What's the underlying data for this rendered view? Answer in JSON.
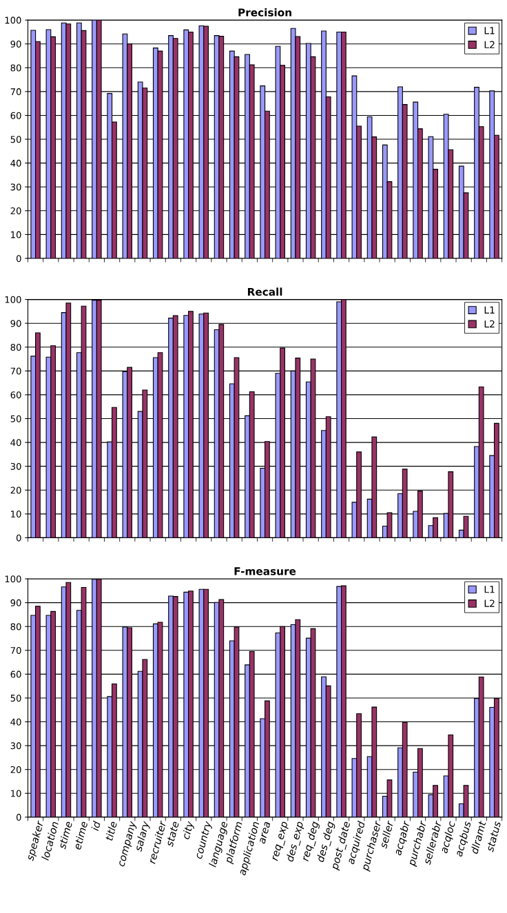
{
  "chart_data": [
    {
      "type": "bar",
      "title": "Precision",
      "categories": [
        null,
        null,
        null,
        null,
        null,
        null,
        null,
        null,
        null,
        null,
        null,
        null,
        null,
        null,
        null,
        null,
        null,
        null,
        null,
        null,
        null,
        null,
        null,
        null,
        null,
        null,
        null,
        null,
        null,
        null,
        null
      ],
      "series": [
        {
          "name": "L1",
          "color": "#9999ff",
          "values": [
            95.7,
            96,
            98.8,
            98.8,
            100,
            69.2,
            94.2,
            74,
            88.3,
            93.5,
            95.9,
            97.6,
            93.5,
            87,
            85.6,
            72.4,
            89,
            96.5,
            90.2,
            95.4,
            95,
            76.6,
            59.4,
            47.6,
            72,
            65.6,
            51.1,
            60.5,
            38.7,
            71.8,
            70.3
          ]
        },
        {
          "name": "L2",
          "color": "#993366",
          "values": [
            91,
            93,
            98.4,
            95.6,
            100,
            57.2,
            90,
            71.5,
            87,
            92.3,
            95,
            97.4,
            93.2,
            84.6,
            81.2,
            61.8,
            81,
            93.1,
            84.6,
            67.8,
            95,
            55.5,
            51,
            32.2,
            64.6,
            54.4,
            37.4,
            45.6,
            27.5,
            55.3,
            51.7
          ]
        }
      ],
      "ylim": [
        0,
        100
      ],
      "yticks": [
        0,
        10,
        20,
        30,
        40,
        50,
        60,
        70,
        80,
        90,
        100
      ],
      "grid": "y",
      "legend": "top right",
      "tick_labels": "y"
    },
    {
      "type": "bar",
      "title": "Recall",
      "categories": [
        null,
        null,
        null,
        null,
        null,
        null,
        null,
        null,
        null,
        null,
        null,
        null,
        null,
        null,
        null,
        null,
        null,
        null,
        null,
        null,
        null,
        null,
        null,
        null,
        null,
        null,
        null,
        null,
        null,
        null,
        null
      ],
      "series": [
        {
          "name": "L1",
          "color": "#9999ff",
          "values": [
            76.2,
            75.8,
            94.5,
            77.7,
            99.7,
            40.2,
            69.7,
            53,
            75.6,
            92.2,
            93.3,
            93.9,
            87.3,
            64.6,
            51.2,
            29.2,
            69,
            70,
            65.4,
            45,
            99,
            14.9,
            16.2,
            4.9,
            18.5,
            11.1,
            5.1,
            10.2,
            3.2,
            38.3,
            34.5
          ]
        },
        {
          "name": "L2",
          "color": "#993366",
          "values": [
            86,
            80.6,
            98.5,
            97.2,
            99.7,
            54.7,
            71.5,
            62,
            77.7,
            93.2,
            95,
            94.3,
            89.5,
            75.6,
            61.3,
            40.4,
            79.6,
            75.4,
            75,
            50.8,
            100,
            36,
            42.3,
            10.5,
            28.8,
            19.6,
            8.4,
            27.7,
            9,
            63.3,
            48
          ]
        }
      ],
      "ylim": [
        0,
        100
      ],
      "yticks": [
        0,
        10,
        20,
        30,
        40,
        50,
        60,
        70,
        80,
        90,
        100
      ],
      "grid": "y",
      "legend": "top right",
      "tick_labels": "y"
    },
    {
      "type": "bar",
      "title": "F-measure",
      "categories": [
        "speaker",
        "location",
        "stime",
        "etime",
        "id",
        "title",
        "company",
        "salary",
        "recruiter",
        "state",
        "city",
        "country",
        "language",
        "platform",
        "application",
        "area",
        "req_exp",
        "des_exp",
        "req_deg",
        "des_deg",
        "post_date",
        "acquired",
        "purchaser",
        "seller",
        "acqabr",
        "purchabr",
        "sellerabr",
        "acqloc",
        "acqbus",
        "dlramt",
        "status"
      ],
      "series": [
        {
          "name": "L1",
          "color": "#9999ff",
          "values": [
            84.7,
            84.7,
            96.6,
            86.8,
            99.8,
            50.6,
            79.8,
            61.2,
            81.1,
            92.8,
            94.4,
            95.6,
            90.1,
            74,
            63.9,
            41.3,
            77.3,
            80.8,
            75.1,
            58.9,
            96.8,
            24.6,
            25.4,
            8.8,
            29.1,
            18.9,
            9.4,
            17.3,
            5.6,
            49.8,
            46.1
          ]
        },
        {
          "name": "L2",
          "color": "#993366",
          "values": [
            88.5,
            86.3,
            98.5,
            96.4,
            99.8,
            55.9,
            79.5,
            66.2,
            81.8,
            92.6,
            94.9,
            95.6,
            91.3,
            79.8,
            69.5,
            48.8,
            80,
            82.9,
            79.1,
            55.1,
            97.1,
            43.4,
            46.2,
            15.6,
            39.8,
            28.8,
            13.3,
            34.5,
            13.3,
            58.8,
            49.8
          ]
        }
      ],
      "ylim": [
        0,
        100
      ],
      "yticks": [
        0,
        10,
        20,
        30,
        40,
        50,
        60,
        70,
        80,
        90,
        100
      ],
      "grid": "y",
      "legend": "top right"
    }
  ]
}
